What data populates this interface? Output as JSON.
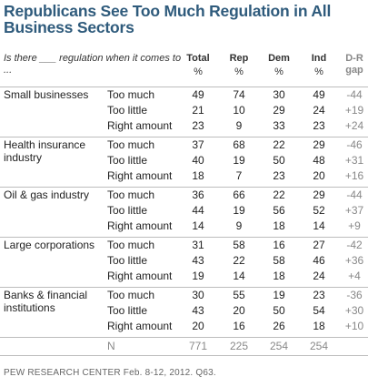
{
  "title": "Republicans See Too Much Regulation in All Business Sectors",
  "question": "Is there ___ regulation when it comes to ...",
  "columns": [
    {
      "name": "Total",
      "unit": "%"
    },
    {
      "name": "Rep",
      "unit": "%"
    },
    {
      "name": "Dem",
      "unit": "%"
    },
    {
      "name": "Ind",
      "unit": "%"
    },
    {
      "name": "D-R gap",
      "unit": ""
    }
  ],
  "gap_color": "#888888",
  "title_color": "#2f5b7c",
  "chart_data": {
    "type": "table",
    "title": "Republicans See Too Much Regulation in All Business Sectors",
    "columns": [
      "Total",
      "Rep",
      "Dem",
      "Ind",
      "D-R gap"
    ],
    "sectors": [
      {
        "name": "Small businesses",
        "rows": [
          {
            "label": "Too much",
            "values": [
              "49",
              "74",
              "30",
              "49",
              "-44"
            ]
          },
          {
            "label": "Too little",
            "values": [
              "21",
              "10",
              "29",
              "24",
              "+19"
            ]
          },
          {
            "label": "Right amount",
            "values": [
              "23",
              "9",
              "33",
              "23",
              "+24"
            ]
          }
        ]
      },
      {
        "name": "Health insurance industry",
        "rows": [
          {
            "label": "Too much",
            "values": [
              "37",
              "68",
              "22",
              "29",
              "-46"
            ]
          },
          {
            "label": "Too little",
            "values": [
              "40",
              "19",
              "50",
              "48",
              "+31"
            ]
          },
          {
            "label": "Right amount",
            "values": [
              "18",
              "7",
              "23",
              "20",
              "+16"
            ]
          }
        ]
      },
      {
        "name": "Oil & gas industry",
        "rows": [
          {
            "label": "Too much",
            "values": [
              "36",
              "66",
              "22",
              "29",
              "-44"
            ]
          },
          {
            "label": "Too little",
            "values": [
              "44",
              "19",
              "56",
              "52",
              "+37"
            ]
          },
          {
            "label": "Right amount",
            "values": [
              "14",
              "9",
              "18",
              "14",
              "+9"
            ]
          }
        ]
      },
      {
        "name": "Large corporations",
        "rows": [
          {
            "label": "Too much",
            "values": [
              "31",
              "58",
              "16",
              "27",
              "-42"
            ]
          },
          {
            "label": "Too little",
            "values": [
              "43",
              "22",
              "58",
              "46",
              "+36"
            ]
          },
          {
            "label": "Right amount",
            "values": [
              "19",
              "14",
              "18",
              "24",
              "+4"
            ]
          }
        ]
      },
      {
        "name": "Banks & financial institutions",
        "rows": [
          {
            "label": "Too much",
            "values": [
              "30",
              "55",
              "19",
              "23",
              "-36"
            ]
          },
          {
            "label": "Too little",
            "values": [
              "43",
              "20",
              "50",
              "54",
              "+30"
            ]
          },
          {
            "label": "Right amount",
            "values": [
              "20",
              "16",
              "26",
              "18",
              "+10"
            ]
          }
        ]
      }
    ],
    "n_row": {
      "label": "N",
      "values": [
        "771",
        "225",
        "254",
        "254"
      ]
    }
  },
  "source": "PEW RESEARCH CENTER Feb. 8-12, 2012. Q63."
}
